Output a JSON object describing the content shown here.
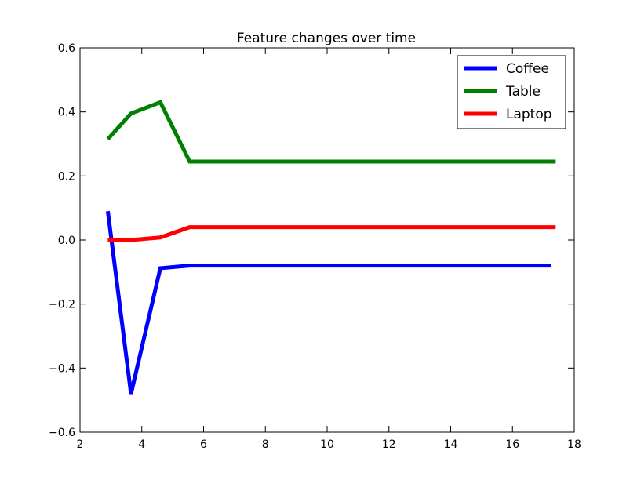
{
  "chart_data": {
    "type": "line",
    "title": "Feature changes over time",
    "xlabel": "",
    "ylabel": "",
    "xlim": [
      2,
      18
    ],
    "ylim": [
      -0.6,
      0.6
    ],
    "x_ticks": [
      2,
      4,
      6,
      8,
      10,
      12,
      14,
      16,
      18
    ],
    "y_ticks": [
      -0.6,
      -0.4,
      -0.2,
      0.0,
      0.2,
      0.4,
      0.6
    ],
    "x_tick_labels": [
      "2",
      "4",
      "6",
      "8",
      "10",
      "12",
      "14",
      "16",
      "18"
    ],
    "y_tick_labels": [
      "−0.6",
      "−0.4",
      "−0.2",
      "0.0",
      "0.2",
      "0.4",
      "0.6"
    ],
    "grid": false,
    "legend_position": "top-right",
    "series": [
      {
        "name": "Coffee",
        "color": "#0000ff",
        "points": [
          [
            2.9,
            0.09
          ],
          [
            3.65,
            -0.48
          ],
          [
            4.6,
            -0.088
          ],
          [
            5.55,
            -0.08
          ],
          [
            17.25,
            -0.08
          ]
        ]
      },
      {
        "name": "Table",
        "color": "#008000",
        "points": [
          [
            2.9,
            0.315
          ],
          [
            3.65,
            0.395
          ],
          [
            4.6,
            0.43
          ],
          [
            5.55,
            0.245
          ],
          [
            17.4,
            0.245
          ]
        ]
      },
      {
        "name": "Laptop",
        "color": "#ff0000",
        "points": [
          [
            2.9,
            0.0
          ],
          [
            3.65,
            0.0
          ],
          [
            4.6,
            0.008
          ],
          [
            5.55,
            0.04
          ],
          [
            17.4,
            0.04
          ]
        ]
      }
    ]
  }
}
